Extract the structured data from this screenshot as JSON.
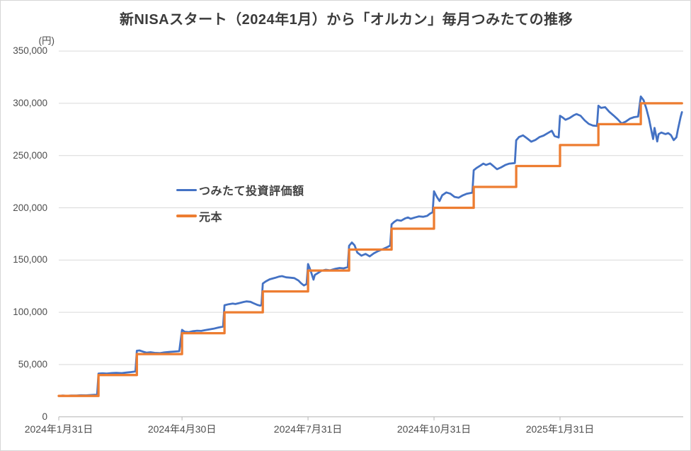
{
  "chart_data": {
    "type": "line",
    "title": "新NISAスタート（2024年1月）から「オルカン」毎月つみたての推移",
    "y_axis": {
      "unit_label": "(円)",
      "min": 0,
      "max": 350000,
      "tick_values": [
        350000,
        300000,
        250000,
        200000,
        150000,
        100000,
        50000,
        0
      ],
      "tick_labels": [
        "350,000",
        "300,000",
        "250,000",
        "200,000",
        "150,000",
        "100,000",
        "50,000",
        "0"
      ],
      "gridlines": true
    },
    "x_axis": {
      "start_date": "2024-01-31",
      "ticks": [
        {
          "label": "2024年1月31日",
          "day": 0
        },
        {
          "label": "2024年4月30日",
          "day": 90
        },
        {
          "label": "2024年7月31日",
          "day": 182
        },
        {
          "label": "2024年10月31日",
          "day": 274
        },
        {
          "label": "2025年1月31日",
          "day": 366
        }
      ],
      "end_day": 455
    },
    "legend": {
      "position": "inside-upper-left"
    },
    "style_colors": {
      "gridline": "#d9d9d9",
      "axis": "#b3b3b3",
      "title_text": "#3b3b3b",
      "axis_text": "#4d4d4d"
    },
    "series": [
      {
        "name": "つみたて投資評価額",
        "color": "#4472C4",
        "stroke_width": 2.8,
        "points": [
          [
            0,
            20000
          ],
          [
            3,
            20300
          ],
          [
            6,
            20100
          ],
          [
            9,
            20400
          ],
          [
            13,
            20300
          ],
          [
            16,
            20600
          ],
          [
            20,
            20500
          ],
          [
            23,
            20800
          ],
          [
            26,
            21000
          ],
          [
            28,
            21100
          ],
          [
            29,
            41300
          ],
          [
            32,
            41600
          ],
          [
            35,
            41300
          ],
          [
            39,
            41900
          ],
          [
            42,
            42100
          ],
          [
            46,
            41800
          ],
          [
            49,
            42300
          ],
          [
            52,
            42700
          ],
          [
            56,
            43400
          ],
          [
            57,
            63200
          ],
          [
            59,
            63500
          ],
          [
            62,
            62200
          ],
          [
            64,
            61400
          ],
          [
            67,
            61800
          ],
          [
            70,
            61200
          ],
          [
            74,
            60900
          ],
          [
            77,
            61600
          ],
          [
            81,
            62100
          ],
          [
            84,
            62400
          ],
          [
            88,
            62800
          ],
          [
            90,
            83200
          ],
          [
            92,
            81300
          ],
          [
            95,
            81000
          ],
          [
            98,
            81900
          ],
          [
            101,
            82400
          ],
          [
            104,
            82200
          ],
          [
            107,
            83000
          ],
          [
            110,
            83700
          ],
          [
            113,
            84300
          ],
          [
            116,
            85200
          ],
          [
            120,
            86300
          ],
          [
            121,
            106800
          ],
          [
            124,
            107700
          ],
          [
            127,
            108300
          ],
          [
            129,
            107900
          ],
          [
            132,
            108900
          ],
          [
            135,
            109900
          ],
          [
            137,
            110400
          ],
          [
            140,
            110000
          ],
          [
            142,
            108800
          ],
          [
            145,
            107100
          ],
          [
            147,
            106400
          ],
          [
            148,
            107000
          ],
          [
            149,
            127500
          ],
          [
            151,
            129500
          ],
          [
            154,
            131600
          ],
          [
            158,
            133000
          ],
          [
            161,
            134200
          ],
          [
            163,
            134600
          ],
          [
            166,
            133500
          ],
          [
            169,
            133100
          ],
          [
            172,
            132700
          ],
          [
            175,
            130400
          ],
          [
            177,
            127700
          ],
          [
            179,
            125700
          ],
          [
            181,
            127100
          ],
          [
            182,
            146200
          ],
          [
            183,
            143000
          ],
          [
            184,
            139500
          ],
          [
            186,
            131200
          ],
          [
            187,
            135800
          ],
          [
            189,
            137400
          ],
          [
            192,
            139900
          ],
          [
            195,
            140700
          ],
          [
            198,
            140200
          ],
          [
            202,
            141700
          ],
          [
            205,
            142400
          ],
          [
            208,
            142100
          ],
          [
            211,
            143200
          ],
          [
            212,
            163700
          ],
          [
            214,
            166800
          ],
          [
            216,
            164100
          ],
          [
            218,
            157200
          ],
          [
            221,
            154200
          ],
          [
            224,
            155900
          ],
          [
            227,
            153500
          ],
          [
            230,
            156400
          ],
          [
            233,
            158500
          ],
          [
            237,
            160700
          ],
          [
            240,
            162500
          ],
          [
            242,
            163800
          ],
          [
            243,
            184200
          ],
          [
            245,
            186600
          ],
          [
            247,
            188300
          ],
          [
            250,
            187700
          ],
          [
            253,
            189900
          ],
          [
            255,
            190800
          ],
          [
            257,
            189500
          ],
          [
            260,
            190700
          ],
          [
            263,
            191800
          ],
          [
            266,
            191400
          ],
          [
            269,
            192300
          ],
          [
            271,
            194300
          ],
          [
            273,
            195700
          ],
          [
            274,
            215800
          ],
          [
            276,
            210600
          ],
          [
            278,
            206500
          ],
          [
            280,
            212000
          ],
          [
            283,
            214700
          ],
          [
            286,
            213500
          ],
          [
            289,
            210400
          ],
          [
            292,
            209700
          ],
          [
            295,
            211900
          ],
          [
            298,
            213500
          ],
          [
            302,
            214500
          ],
          [
            303,
            235900
          ],
          [
            305,
            238100
          ],
          [
            308,
            240500
          ],
          [
            310,
            242300
          ],
          [
            312,
            241000
          ],
          [
            315,
            242500
          ],
          [
            317,
            240300
          ],
          [
            320,
            236900
          ],
          [
            323,
            238700
          ],
          [
            326,
            240900
          ],
          [
            329,
            242300
          ],
          [
            333,
            242800
          ],
          [
            334,
            264600
          ],
          [
            336,
            267700
          ],
          [
            339,
            269300
          ],
          [
            342,
            266400
          ],
          [
            345,
            263300
          ],
          [
            348,
            264900
          ],
          [
            351,
            267700
          ],
          [
            354,
            269100
          ],
          [
            357,
            271400
          ],
          [
            360,
            273700
          ],
          [
            362,
            268600
          ],
          [
            365,
            267300
          ],
          [
            366,
            288100
          ],
          [
            368,
            286300
          ],
          [
            370,
            284200
          ],
          [
            373,
            285900
          ],
          [
            376,
            288500
          ],
          [
            378,
            289700
          ],
          [
            381,
            288100
          ],
          [
            384,
            283700
          ],
          [
            387,
            280300
          ],
          [
            390,
            278700
          ],
          [
            393,
            278300
          ],
          [
            394,
            297700
          ],
          [
            396,
            295600
          ],
          [
            399,
            296300
          ],
          [
            402,
            291900
          ],
          [
            405,
            288500
          ],
          [
            408,
            284900
          ],
          [
            411,
            280700
          ],
          [
            414,
            282500
          ],
          [
            417,
            285300
          ],
          [
            420,
            286700
          ],
          [
            423,
            287300
          ],
          [
            425,
            306500
          ],
          [
            427,
            303000
          ],
          [
            429,
            295000
          ],
          [
            431,
            285000
          ],
          [
            433,
            272000
          ],
          [
            434,
            265800
          ],
          [
            435,
            276500
          ],
          [
            437,
            263500
          ],
          [
            438,
            270500
          ],
          [
            440,
            272000
          ],
          [
            443,
            270500
          ],
          [
            445,
            271500
          ],
          [
            447,
            269500
          ],
          [
            449,
            264800
          ],
          [
            451,
            267500
          ],
          [
            452,
            274500
          ],
          [
            454,
            286500
          ],
          [
            455,
            291500
          ]
        ]
      },
      {
        "name": "元本",
        "color": "#ED7D31",
        "stroke_width": 3.3,
        "points": [
          [
            0,
            20000
          ],
          [
            29,
            20000
          ],
          [
            29,
            40000
          ],
          [
            57,
            40000
          ],
          [
            57,
            60000
          ],
          [
            90,
            60000
          ],
          [
            90,
            80000
          ],
          [
            121,
            80000
          ],
          [
            121,
            100000
          ],
          [
            149,
            100000
          ],
          [
            149,
            120000
          ],
          [
            182,
            120000
          ],
          [
            182,
            140000
          ],
          [
            212,
            140000
          ],
          [
            212,
            160000
          ],
          [
            243,
            160000
          ],
          [
            243,
            180000
          ],
          [
            274,
            180000
          ],
          [
            274,
            200000
          ],
          [
            303,
            200000
          ],
          [
            303,
            220000
          ],
          [
            334,
            220000
          ],
          [
            334,
            240000
          ],
          [
            366,
            240000
          ],
          [
            366,
            260000
          ],
          [
            394,
            260000
          ],
          [
            394,
            280000
          ],
          [
            425,
            280000
          ],
          [
            425,
            300000
          ],
          [
            455,
            300000
          ]
        ]
      }
    ]
  }
}
